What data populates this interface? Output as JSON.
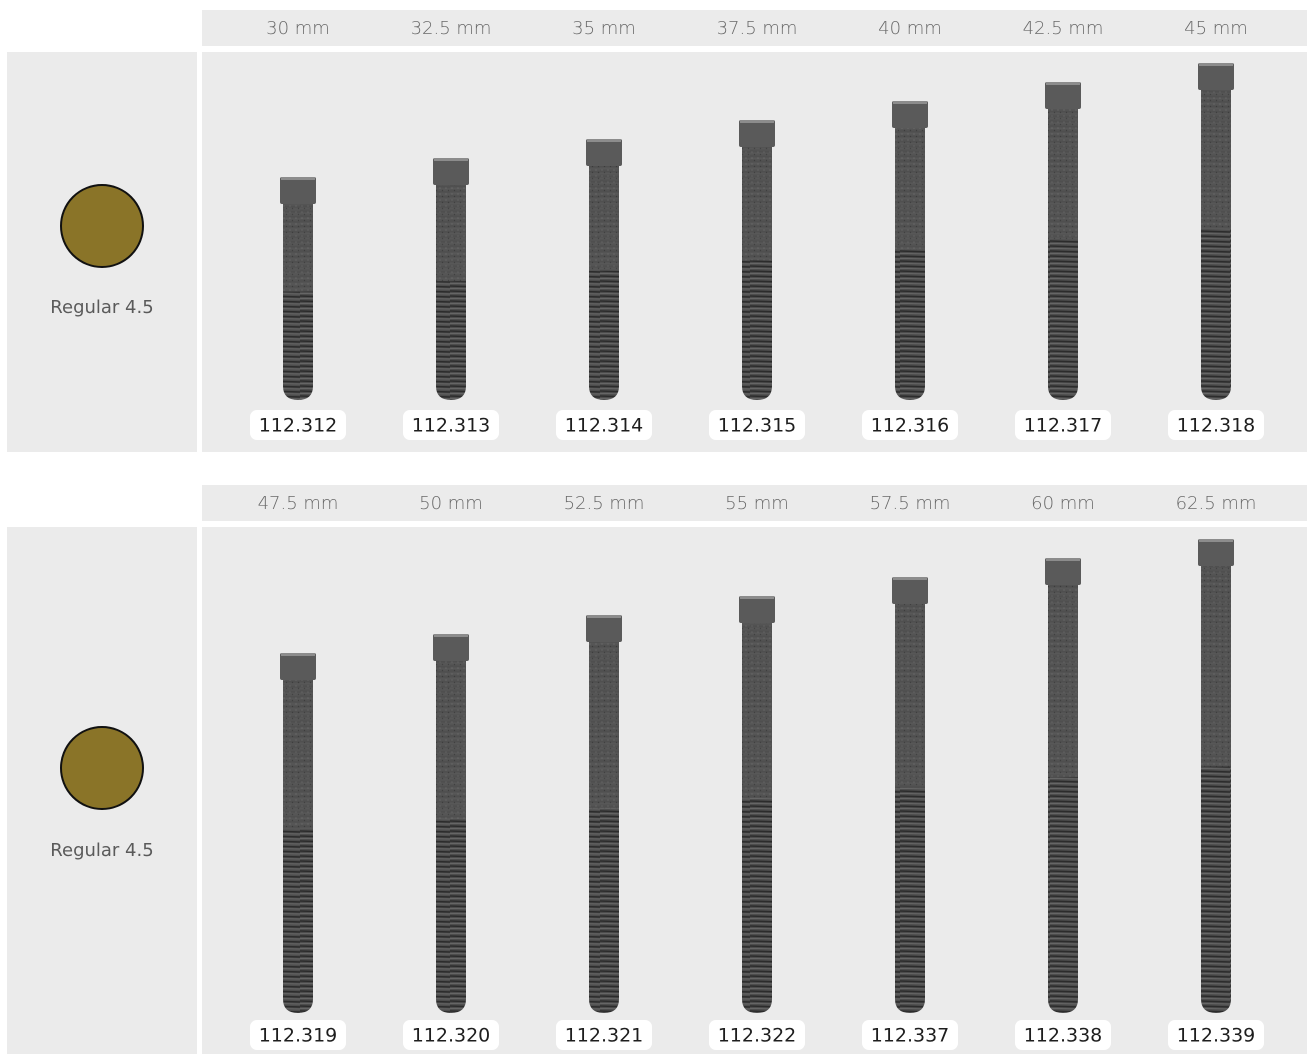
{
  "panels": [
    {
      "lengths": [
        "30 mm",
        "32.5 mm",
        "35 mm",
        "37.5 mm",
        "40 mm",
        "42.5 mm",
        "45 mm"
      ],
      "platform": "Regular 4.5",
      "codes": [
        "112.312",
        "112.313",
        "112.314",
        "112.315",
        "112.316",
        "112.317",
        "112.318"
      ]
    },
    {
      "lengths": [
        "47.5 mm",
        "50 mm",
        "52.5 mm",
        "55 mm",
        "57.5 mm",
        "60 mm",
        "62.5 mm"
      ],
      "platform": "Regular 4.5",
      "codes": [
        "112.319",
        "112.320",
        "112.321",
        "112.322",
        "112.337",
        "112.338",
        "112.339"
      ]
    }
  ]
}
